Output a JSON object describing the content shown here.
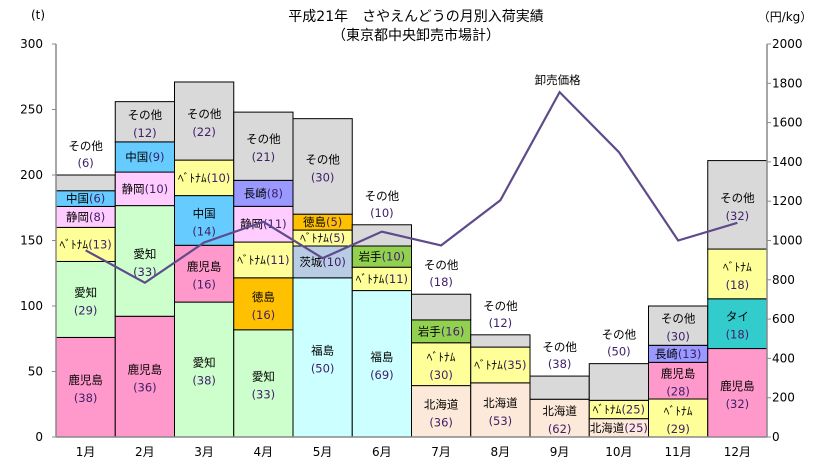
{
  "chart_data": {
    "type": "bar",
    "stacked": true,
    "title": "平成21年　さやえんどうの月別入荷実績",
    "subtitle": "（東京都中央卸売市場計）",
    "ylabel": "(t)",
    "y2label": "（円/kg）",
    "ylim": [
      0,
      300
    ],
    "y2lim": [
      0,
      2000
    ],
    "yticks": [
      0,
      50,
      100,
      150,
      200,
      250,
      300
    ],
    "y2ticks": [
      0,
      200,
      400,
      600,
      800,
      1000,
      1200,
      1400,
      1600,
      1800,
      2000
    ],
    "categories": [
      "1月",
      "2月",
      "3月",
      "4月",
      "5月",
      "6月",
      "7月",
      "8月",
      "9月",
      "10月",
      "11月",
      "12月"
    ],
    "segment_colors": {
      "鹿児島": "#ff99cc",
      "愛知": "#ccffcc",
      "ベトナム": "#ffff99",
      "静岡": "#ffccff",
      "中国": "#66ccff",
      "その他": "#d9d9d9",
      "長崎": "#9999ff",
      "徳島": "#ffc000",
      "福島": "#ccffff",
      "茨城": "#b8cce4",
      "岩手": "#92d050",
      "北海道": "#fde9d9",
      "タイ": "#33cccc"
    },
    "months": [
      {
        "total": 200,
        "segments": [
          {
            "name": "鹿児島",
            "pct": 38,
            "label": "鹿児島",
            "pct_label": "(38)"
          },
          {
            "name": "愛知",
            "pct": 29,
            "label": "愛知",
            "pct_label": "(29)"
          },
          {
            "name": "ベトナム",
            "pct": 13,
            "label": "ﾍﾞﾄﾅﾑ",
            "pct_label": "(13)"
          },
          {
            "name": "静岡",
            "pct": 8,
            "label": "静岡",
            "pct_label": "(8)"
          },
          {
            "name": "中国",
            "pct": 6,
            "label": "中国",
            "pct_label": "(6)"
          },
          {
            "name": "その他",
            "pct": 6,
            "label": "その他",
            "pct_label": "(6)",
            "label_above": true
          }
        ]
      },
      {
        "total": 256,
        "segments": [
          {
            "name": "鹿児島",
            "pct": 36,
            "label": "鹿児島",
            "pct_label": "(36)"
          },
          {
            "name": "愛知",
            "pct": 33,
            "label": "愛知",
            "pct_label": "(33)"
          },
          {
            "name": "静岡",
            "pct": 10,
            "label": "静岡",
            "pct_label": "(10)"
          },
          {
            "name": "中国",
            "pct": 9,
            "label": "中国",
            "pct_label": "(9)"
          },
          {
            "name": "その他",
            "pct": 12,
            "label": "その他",
            "pct_label": "(12)"
          }
        ]
      },
      {
        "total": 271,
        "segments": [
          {
            "name": "愛知",
            "pct": 38,
            "label": "愛知",
            "pct_label": "(38)"
          },
          {
            "name": "鹿児島",
            "pct": 16,
            "label": "鹿児島",
            "pct_label": "(16)"
          },
          {
            "name": "中国",
            "pct": 14,
            "label": "中国",
            "pct_label": "(14)"
          },
          {
            "name": "ベトナム",
            "pct": 10,
            "label": "ﾍﾞﾄﾅﾑ",
            "pct_label": "(10)"
          },
          {
            "name": "その他",
            "pct": 22,
            "label": "その他",
            "pct_label": "(22)"
          }
        ]
      },
      {
        "total": 248,
        "segments": [
          {
            "name": "愛知",
            "pct": 33,
            "label": "愛知",
            "pct_label": "(33)"
          },
          {
            "name": "徳島",
            "pct": 16,
            "label": "徳島",
            "pct_label": "(16)"
          },
          {
            "name": "ベトナム",
            "pct": 11,
            "label": "ﾍﾞﾄﾅﾑ",
            "pct_label": "(11)"
          },
          {
            "name": "静岡",
            "pct": 11,
            "label": "静岡",
            "pct_label": "(11)"
          },
          {
            "name": "長崎",
            "pct": 8,
            "label": "長崎",
            "pct_label": "(8)"
          },
          {
            "name": "その他",
            "pct": 21,
            "label": "その他",
            "pct_label": "(21)"
          }
        ]
      },
      {
        "total": 243,
        "segments": [
          {
            "name": "福島",
            "pct": 50,
            "label": "福島",
            "pct_label": "(50)"
          },
          {
            "name": "茨城",
            "pct": 10,
            "label": "茨城",
            "pct_label": "(10)"
          },
          {
            "name": "ベトナム",
            "pct": 5,
            "label": "ﾍﾞﾄﾅﾑ",
            "pct_label": "(5)"
          },
          {
            "name": "徳島",
            "pct": 5,
            "label": "徳島",
            "pct_label": "(5)"
          },
          {
            "name": "その他",
            "pct": 30,
            "label": "その他",
            "pct_label": "(30)"
          }
        ]
      },
      {
        "total": 162,
        "segments": [
          {
            "name": "福島",
            "pct": 69,
            "label": "福島",
            "pct_label": "(69)"
          },
          {
            "name": "ベトナム",
            "pct": 11,
            "label": "ﾍﾞﾄﾅﾑ",
            "pct_label": "(11)"
          },
          {
            "name": "岩手",
            "pct": 10,
            "label": "岩手",
            "pct_label": "(10)"
          },
          {
            "name": "その他",
            "pct": 10,
            "label": "その他",
            "pct_label": "(10)",
            "label_above": true
          }
        ]
      },
      {
        "total": 109,
        "segments": [
          {
            "name": "北海道",
            "pct": 36,
            "label": "北海道",
            "pct_label": "(36)"
          },
          {
            "name": "ベトナム",
            "pct": 30,
            "label": "ﾍﾞﾄﾅﾑ",
            "pct_label": "(30)"
          },
          {
            "name": "岩手",
            "pct": 16,
            "label": "岩手",
            "pct_label": "(16)"
          },
          {
            "name": "その他",
            "pct": 18,
            "label": "その他",
            "pct_label": "(18)",
            "label_above": true
          }
        ]
      },
      {
        "total": 78,
        "segments": [
          {
            "name": "北海道",
            "pct": 53,
            "label": "北海道",
            "pct_label": "(53)"
          },
          {
            "name": "ベトナム",
            "pct": 35,
            "label": "ﾍﾞﾄﾅﾑ",
            "pct_label": "(35)"
          },
          {
            "name": "その他",
            "pct": 12,
            "label": "その他",
            "pct_label": "(12)",
            "label_above": true
          }
        ]
      },
      {
        "total": 46.5,
        "segments": [
          {
            "name": "北海道",
            "pct": 62,
            "label": "北海道",
            "pct_label": "(62)"
          },
          {
            "name": "その他",
            "pct": 38,
            "label": "その他",
            "pct_label": "(38)",
            "label_above": true
          }
        ]
      },
      {
        "total": 56,
        "segments": [
          {
            "name": "北海道",
            "pct": 25,
            "label": "北海道",
            "pct_label": "(25)"
          },
          {
            "name": "ベトナム",
            "pct": 25,
            "label": "ﾍﾞﾄﾅﾑ",
            "pct_label": "(25)"
          },
          {
            "name": "その他",
            "pct": 50,
            "label": "その他",
            "pct_label": "(50)",
            "label_above": true
          }
        ]
      },
      {
        "total": 100,
        "segments": [
          {
            "name": "ベトナム",
            "pct": 29,
            "label": "ﾍﾞﾄﾅﾑ",
            "pct_label": "(29)"
          },
          {
            "name": "鹿児島",
            "pct": 28,
            "label": "鹿児島",
            "pct_label": "(28)"
          },
          {
            "name": "長崎",
            "pct": 13,
            "label": "長崎",
            "pct_label": "(13)"
          },
          {
            "name": "その他",
            "pct": 30,
            "label": "その他",
            "pct_label": "(30)"
          }
        ]
      },
      {
        "total": 211,
        "segments": [
          {
            "name": "鹿児島",
            "pct": 32,
            "label": "鹿児島",
            "pct_label": "(32)"
          },
          {
            "name": "タイ",
            "pct": 18,
            "label": "タイ",
            "pct_label": "(18)"
          },
          {
            "name": "ベトナム",
            "pct": 18,
            "label": "ﾍﾞﾄﾅﾑ",
            "pct_label": "(18)"
          },
          {
            "name": "その他",
            "pct": 32,
            "label": "その他",
            "pct_label": "(32)"
          }
        ]
      }
    ],
    "line": {
      "name": "卸売価格",
      "axis": "right",
      "color": "#5f4b8b",
      "values": [
        950,
        785,
        990,
        1095,
        910,
        1045,
        975,
        1205,
        1755,
        1450,
        1000,
        1090
      ]
    }
  }
}
